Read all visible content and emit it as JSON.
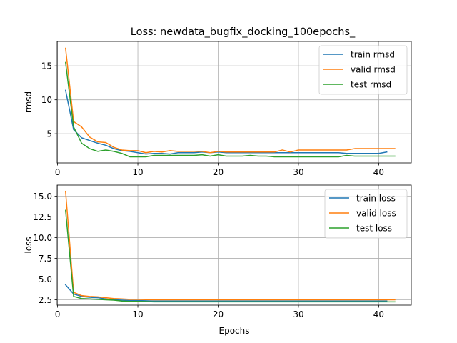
{
  "chart_data": [
    {
      "type": "line",
      "title": "Loss: newdata_bugfix_docking_100epochs_",
      "xlabel": "",
      "ylabel": "rmsd",
      "xlim": [
        -0.05,
        44.05
      ],
      "ylim": [
        0.7,
        18.6
      ],
      "xticks": [
        0,
        10,
        20,
        30,
        40
      ],
      "yticks": [
        5,
        10,
        15
      ],
      "grid": true,
      "legend_position": "upper right",
      "series": [
        {
          "name": "train rmsd",
          "color": "#1f77b4",
          "x": [
            1,
            2,
            3,
            4,
            5,
            6,
            7,
            8,
            9,
            10,
            11,
            12,
            13,
            14,
            15,
            16,
            17,
            18,
            19,
            20,
            21,
            22,
            23,
            24,
            25,
            26,
            27,
            28,
            29,
            30,
            31,
            32,
            33,
            34,
            35,
            36,
            37,
            38,
            39,
            40,
            41
          ],
          "values": [
            11.4,
            5.6,
            4.4,
            4.0,
            3.6,
            3.3,
            2.8,
            2.5,
            2.4,
            2.2,
            2.0,
            2.1,
            2.1,
            2.0,
            2.2,
            2.2,
            2.2,
            2.3,
            2.2,
            2.3,
            2.2,
            2.2,
            2.2,
            2.2,
            2.2,
            2.2,
            2.2,
            2.2,
            2.2,
            2.2,
            2.2,
            2.2,
            2.2,
            2.2,
            2.2,
            2.1,
            2.1,
            2.1,
            2.1,
            2.1,
            2.3
          ]
        },
        {
          "name": "valid rmsd",
          "color": "#ff7f0e",
          "x": [
            1,
            2,
            3,
            4,
            5,
            6,
            7,
            8,
            9,
            10,
            11,
            12,
            13,
            14,
            15,
            16,
            17,
            18,
            19,
            20,
            21,
            22,
            23,
            24,
            25,
            26,
            27,
            28,
            29,
            30,
            31,
            32,
            33,
            34,
            35,
            36,
            37,
            38,
            39,
            40,
            41,
            42
          ],
          "values": [
            17.6,
            6.8,
            6.0,
            4.5,
            3.8,
            3.7,
            3.0,
            2.6,
            2.5,
            2.5,
            2.2,
            2.4,
            2.3,
            2.5,
            2.4,
            2.4,
            2.4,
            2.4,
            2.2,
            2.4,
            2.3,
            2.3,
            2.3,
            2.3,
            2.3,
            2.3,
            2.3,
            2.6,
            2.3,
            2.6,
            2.6,
            2.6,
            2.6,
            2.6,
            2.6,
            2.6,
            2.8,
            2.8,
            2.8,
            2.8,
            2.8,
            2.8
          ]
        },
        {
          "name": "test rmsd",
          "color": "#2ca02c",
          "x": [
            1,
            2,
            3,
            4,
            5,
            6,
            7,
            8,
            9,
            10,
            11,
            12,
            13,
            14,
            15,
            16,
            17,
            18,
            19,
            20,
            21,
            22,
            23,
            24,
            25,
            26,
            27,
            28,
            29,
            30,
            31,
            32,
            33,
            34,
            35,
            36,
            37,
            38,
            39,
            40,
            41,
            42
          ],
          "values": [
            15.5,
            6.0,
            3.6,
            2.8,
            2.4,
            2.6,
            2.4,
            2.1,
            1.6,
            1.6,
            1.6,
            1.8,
            1.8,
            1.8,
            1.8,
            1.8,
            1.8,
            1.9,
            1.7,
            1.9,
            1.7,
            1.7,
            1.7,
            1.8,
            1.7,
            1.7,
            1.6,
            1.6,
            1.6,
            1.6,
            1.6,
            1.6,
            1.6,
            1.6,
            1.6,
            1.8,
            1.7,
            1.7,
            1.7,
            1.7,
            1.7,
            1.7
          ]
        }
      ]
    },
    {
      "type": "line",
      "title": "",
      "xlabel": "Epochs",
      "ylabel": "loss",
      "xlim": [
        -0.05,
        44.05
      ],
      "ylim": [
        1.85,
        16.35
      ],
      "xticks": [
        0,
        10,
        20,
        30,
        40
      ],
      "yticks": [
        2.5,
        5.0,
        7.5,
        10.0,
        12.5,
        15.0
      ],
      "ytick_labels": [
        "2.5",
        "5.0",
        "7.5",
        "10.0",
        "12.5",
        "15.0"
      ],
      "grid": true,
      "legend_position": "upper right",
      "series": [
        {
          "name": "train loss",
          "color": "#1f77b4",
          "x": [
            1,
            2,
            3,
            4,
            5,
            6,
            7,
            8,
            9,
            10,
            11,
            12,
            13,
            14,
            15,
            16,
            17,
            18,
            19,
            20,
            21,
            22,
            23,
            24,
            25,
            26,
            27,
            28,
            29,
            30,
            31,
            32,
            33,
            34,
            35,
            36,
            37,
            38,
            39,
            40,
            41
          ],
          "values": [
            4.3,
            3.2,
            2.9,
            2.8,
            2.75,
            2.6,
            2.5,
            2.45,
            2.4,
            2.4,
            2.38,
            2.35,
            2.35,
            2.35,
            2.35,
            2.35,
            2.35,
            2.35,
            2.35,
            2.35,
            2.35,
            2.35,
            2.35,
            2.35,
            2.35,
            2.35,
            2.35,
            2.35,
            2.35,
            2.35,
            2.35,
            2.35,
            2.35,
            2.35,
            2.35,
            2.35,
            2.35,
            2.35,
            2.35,
            2.35,
            2.35
          ]
        },
        {
          "name": "valid loss",
          "color": "#ff7f0e",
          "x": [
            1,
            2,
            3,
            4,
            5,
            6,
            7,
            8,
            9,
            10,
            11,
            12,
            13,
            14,
            15,
            16,
            17,
            18,
            19,
            20,
            21,
            22,
            23,
            24,
            25,
            26,
            27,
            28,
            29,
            30,
            31,
            32,
            33,
            34,
            35,
            36,
            37,
            38,
            39,
            40,
            41,
            42
          ],
          "values": [
            15.6,
            3.4,
            3.0,
            2.9,
            2.85,
            2.75,
            2.65,
            2.6,
            2.55,
            2.55,
            2.52,
            2.5,
            2.5,
            2.5,
            2.5,
            2.5,
            2.5,
            2.5,
            2.5,
            2.5,
            2.5,
            2.5,
            2.5,
            2.5,
            2.5,
            2.5,
            2.5,
            2.5,
            2.5,
            2.5,
            2.5,
            2.5,
            2.5,
            2.5,
            2.5,
            2.5,
            2.5,
            2.5,
            2.5,
            2.5,
            2.5,
            2.5
          ]
        },
        {
          "name": "test loss",
          "color": "#2ca02c",
          "x": [
            1,
            2,
            3,
            4,
            5,
            6,
            7,
            8,
            9,
            10,
            11,
            12,
            13,
            14,
            15,
            16,
            17,
            18,
            19,
            20,
            21,
            22,
            23,
            24,
            25,
            26,
            27,
            28,
            29,
            30,
            31,
            32,
            33,
            34,
            35,
            36,
            37,
            38,
            39,
            40,
            41,
            42
          ],
          "values": [
            13.3,
            2.9,
            2.65,
            2.6,
            2.55,
            2.5,
            2.45,
            2.35,
            2.3,
            2.3,
            2.28,
            2.25,
            2.25,
            2.25,
            2.25,
            2.25,
            2.25,
            2.25,
            2.25,
            2.25,
            2.25,
            2.25,
            2.25,
            2.25,
            2.25,
            2.25,
            2.25,
            2.25,
            2.25,
            2.25,
            2.25,
            2.25,
            2.25,
            2.25,
            2.25,
            2.25,
            2.25,
            2.25,
            2.25,
            2.25,
            2.25,
            2.25
          ]
        }
      ]
    }
  ]
}
